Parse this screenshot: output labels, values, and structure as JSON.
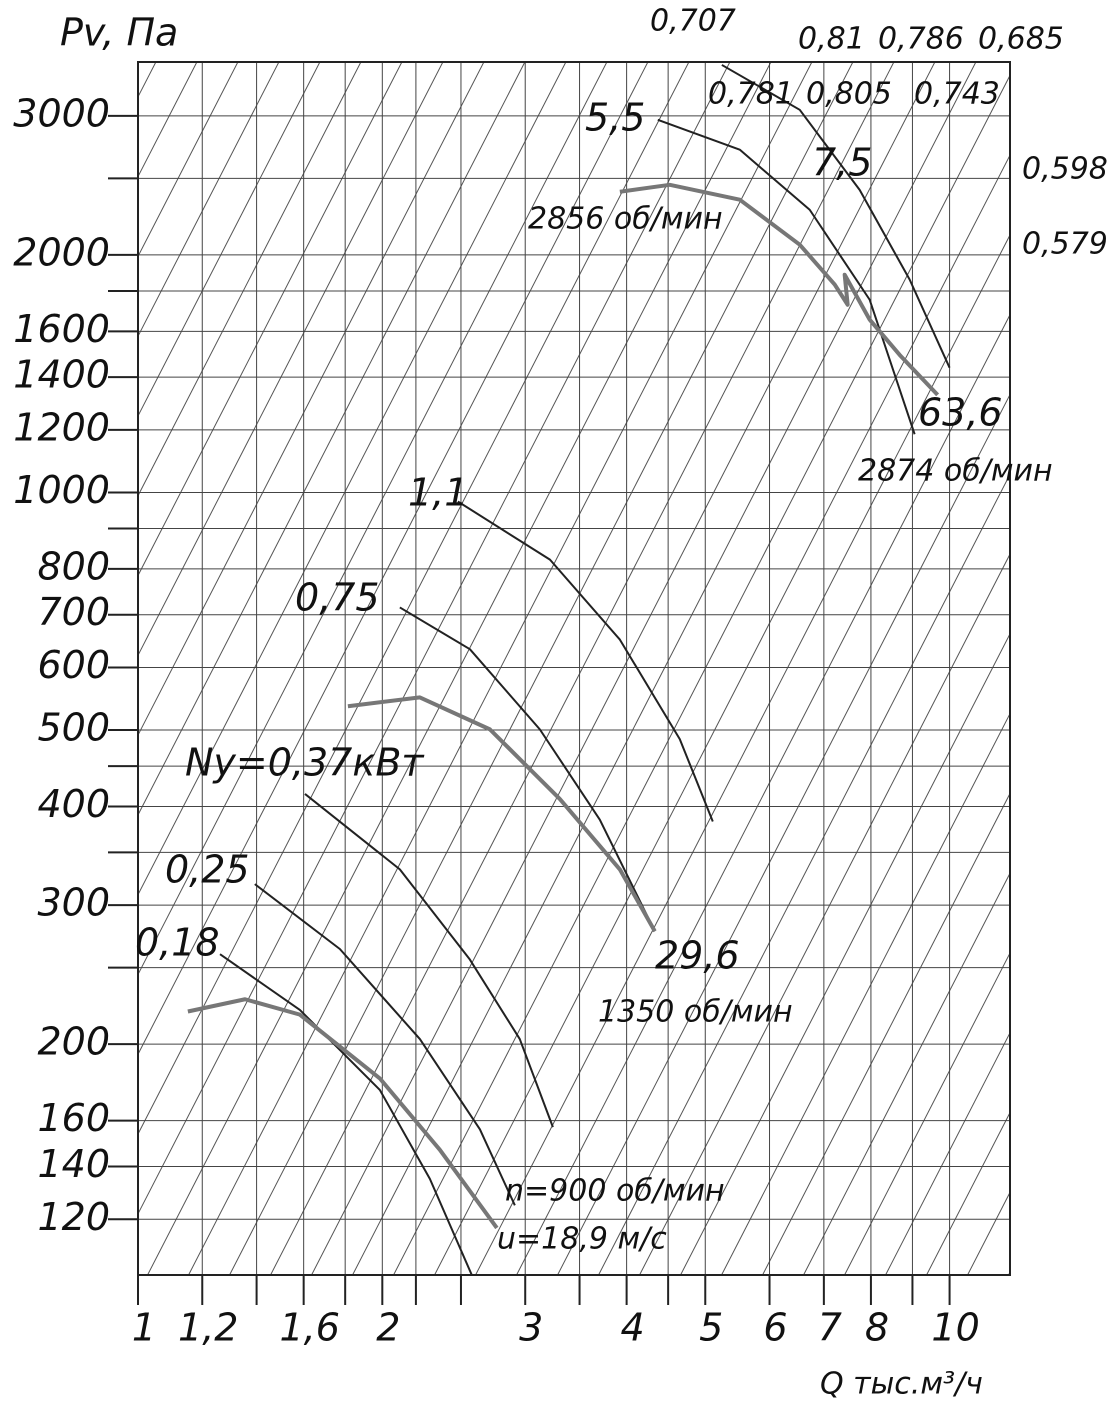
{
  "chart_data": {
    "type": "line",
    "y_label": "Pv, Па",
    "x_label": "Q тыс.м³/ч",
    "xlog": true,
    "ylog": true,
    "grid": true,
    "xlim": [
      1,
      11.87
    ],
    "ylim": [
      102,
      3510
    ],
    "xticks": [
      1,
      {
        "value": 1.2,
        "label": "1,2"
      },
      {
        "value": 1.6,
        "label": "1,6"
      },
      2,
      3,
      4,
      5,
      6,
      7,
      8,
      10
    ],
    "xminorticks": [
      1.4,
      1.8,
      2.2,
      2.5,
      3.5,
      4.5,
      9
    ],
    "yticks": [
      120,
      140,
      160,
      200,
      300,
      400,
      500,
      600,
      700,
      800,
      1000,
      1200,
      1400,
      1600,
      2000,
      3000
    ],
    "yminorticks": [
      250,
      350,
      450,
      900,
      1800,
      2500
    ],
    "series": [
      {
        "name": "0,18",
        "color": "#222222",
        "x": [
          1.262,
          1.583,
          1.986,
          2.289,
          2.578
        ],
        "values": [
          260,
          221,
          175,
          135,
          102
        ]
      },
      {
        "name": "0,25",
        "color": "#222222",
        "x": [
          1.393,
          1.773,
          2.225,
          2.638,
          2.913
        ],
        "values": [
          319,
          264,
          203,
          156,
          125
        ]
      },
      {
        "name": "Ny=0,37кВт",
        "color": "#222222",
        "x": [
          1.606,
          2.102,
          2.564,
          2.954,
          3.245
        ],
        "values": [
          415,
          333,
          256,
          203,
          157
        ]
      },
      {
        "name": "0,75",
        "color": "#222222",
        "x": [
          2.102,
          2.564,
          3.127,
          3.707,
          4.333
        ],
        "values": [
          715,
          633,
          501,
          385,
          278
        ]
      },
      {
        "name": "1,1",
        "color": "#222222",
        "x": [
          2.478,
          3.218,
          3.924,
          4.651,
          5.108
        ],
        "values": [
          974,
          822,
          651,
          487,
          383
        ]
      },
      {
        "name": "5,5",
        "color": "#222222",
        "x": [
          4.37,
          5.514,
          6.724,
          7.97,
          9.056
        ],
        "values": [
          2965,
          2718,
          2281,
          1755,
          1185
        ]
      },
      {
        "name": "7,5",
        "color": "#222222",
        "x": [
          5.241,
          6.537,
          7.748,
          8.928,
          10
        ],
        "values": [
          3480,
          3053,
          2417,
          1861,
          1439
        ]
      },
      {
        "color": "#777777",
        "x": [
          1.152,
          1.355,
          1.583,
          1.986,
          2.354,
          2.768
        ],
        "values": [
          220,
          228,
          218,
          181,
          147,
          117
        ]
      },
      {
        "color": "#777777",
        "x": [
          1.814,
          2.225,
          2.714,
          3.309,
          3.924,
          4.333
        ],
        "values": [
          536,
          550,
          501,
          409,
          333,
          278
        ]
      },
      {
        "color": "#777777",
        "x": [
          3.924,
          4.521,
          5.514,
          6.537,
          7.219,
          7.489,
          7.426,
          7.97,
          8.678,
          9.666
        ],
        "values": [
          2404,
          2453,
          2349,
          2060,
          1834,
          1729,
          1887,
          1656,
          1494,
          1329
        ]
      }
    ],
    "annotations": [
      "0,707",
      "0,81",
      "0,786",
      "0,685",
      "0,781",
      "0,805",
      "0,743",
      "0,598",
      "0,579",
      "2856 об/мин",
      "63,6",
      "2874 об/мин",
      "29,6",
      "1350 об/мин",
      "n=900 об/мин",
      "u=18,9 м/с"
    ]
  }
}
